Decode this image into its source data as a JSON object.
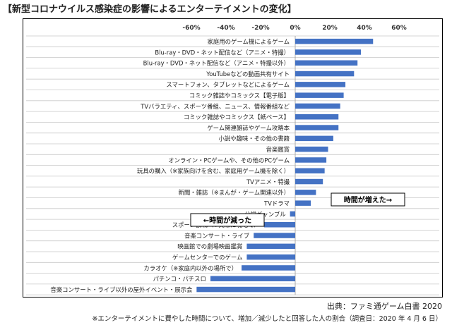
{
  "page": {
    "title": "【新型コロナウイルス感染症の影響によるエンターテイメントの変化】",
    "source": "出典：ファミ通ゲーム白書 2020",
    "footnote": "※エンターテイメントに費やした時間について、増加／減少したと回答した人の割合（調査日：2020 年 4 月 6 日）"
  },
  "chart_data": {
    "type": "bar",
    "orientation": "horizontal",
    "title": "",
    "xlabel": "",
    "ylabel": "",
    "xlim": [
      -60,
      60
    ],
    "tick_values": [
      -60,
      -40,
      -20,
      0,
      20,
      40,
      60
    ],
    "tick_labels": [
      "-60%",
      "-40%",
      "-20%",
      "0%",
      "20%",
      "40%",
      "60%"
    ],
    "grid": "horizontal",
    "bar_color": "#4472C4",
    "categories": [
      "家庭用のゲーム機によるゲーム",
      "Blu-ray・DVD・ネット配信など（アニメ・特撮）",
      "Blu-ray・DVD・ネット配信など（アニメ・特撮以外）",
      "YouTubeなどの動画共有サイト",
      "スマートフォン、タブレットなどによるゲーム",
      "コミック雑誌やコミックス【電子版】",
      "TVバラエティ、スポーツ番組、ニュース、情報番組など",
      "コミック雑誌やコミックス【紙ベース】",
      "ゲーム関連雑誌やゲーム攻略本",
      "小説や趣味・その他の書籍",
      "音楽鑑賞",
      "オンライン・PCゲームや、その他のPCゲーム",
      "玩具の購入（※家族向けを含む、家庭用ゲーム機を除く）",
      "TVアニメ・特撮",
      "新聞・雑誌（※まんが・ゲーム関連以外）",
      "TVドラマ",
      "公営ギャンブル",
      "スポーツ観戦（※実際に現地で）",
      "音楽コンサート・ライブ",
      "映画館での劇場映画鑑賞",
      "ゲームセンターでのゲーム",
      "カラオケ（※家庭内以外の場所で）",
      "パチンコ・パチスロ",
      "音楽コンサート・ライブ以外の屋外イベント・展示会"
    ],
    "values": [
      45,
      38,
      36,
      34,
      29,
      28,
      26,
      25,
      25,
      22,
      19,
      18,
      17,
      16,
      12,
      9,
      -3,
      -18,
      -24,
      -28,
      -28,
      -31,
      -49,
      -57
    ],
    "annotations": [
      {
        "text": "時間が増えた→",
        "side": "positive"
      },
      {
        "text": "←時間が減った",
        "side": "negative"
      }
    ]
  }
}
